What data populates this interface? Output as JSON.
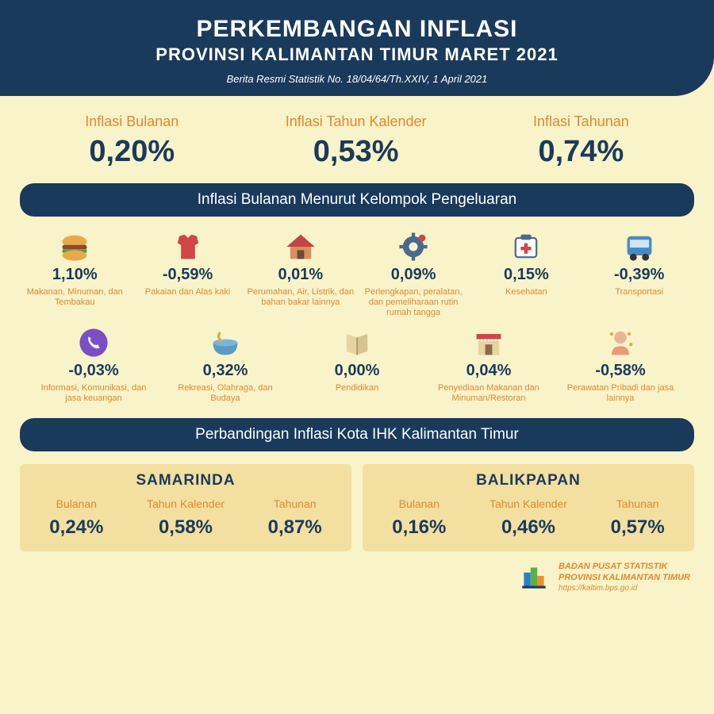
{
  "colors": {
    "bg": "#f8f3c9",
    "navy": "#1a3a5c",
    "orange": "#e08a2e",
    "cardBg": "#f3dfa0"
  },
  "header": {
    "title": "PERKEMBANGAN INFLASI",
    "subtitle": "PROVINSI KALIMANTAN TIMUR MARET 2021",
    "note": "Berita Resmi Statistik No. 18/04/64/Th.XXIV, 1 April 2021"
  },
  "topStats": [
    {
      "label": "Inflasi Bulanan",
      "value": "0,20%"
    },
    {
      "label": "Inflasi Tahun Kalender",
      "value": "0,53%"
    },
    {
      "label": "Inflasi Tahunan",
      "value": "0,74%"
    }
  ],
  "sectionCategories": "Inflasi Bulanan Menurut Kelompok Pengeluaran",
  "categories": [
    {
      "icon": "burger",
      "pct": "1,10%",
      "name": "Makanan, Minuman, dan Tembakau"
    },
    {
      "icon": "shirt",
      "pct": "-0,59%",
      "name": "Pakaian dan Alas kaki"
    },
    {
      "icon": "house",
      "pct": "0,01%",
      "name": "Perumahan, Air, Listrik, dan bahan bakar lainnya"
    },
    {
      "icon": "gear",
      "pct": "0,09%",
      "name": "Perlengkapan, peralatan, dan pemeliharaan rutin rumah tangga"
    },
    {
      "icon": "health",
      "pct": "0,15%",
      "name": "Kesehatan"
    },
    {
      "icon": "bus",
      "pct": "-0,39%",
      "name": "Transportasi"
    },
    {
      "icon": "phone",
      "pct": "-0,03%",
      "name": "Informasi, Komunikasi, dan jasa keuangan"
    },
    {
      "icon": "bowl",
      "pct": "0,32%",
      "name": "Rekreasi, Olahraga, dan Budaya"
    },
    {
      "icon": "book",
      "pct": "0,00%",
      "name": "Pendidikan"
    },
    {
      "icon": "shop",
      "pct": "0,04%",
      "name": "Penyediaan Makanan dan Minuman/Restoran"
    },
    {
      "icon": "person",
      "pct": "-0,58%",
      "name": "Perawatan Pribadi dan jasa lainnya"
    }
  ],
  "sectionCities": "Perbandingan Inflasi Kota IHK Kalimantan Timur",
  "cities": [
    {
      "name": "SAMARINDA",
      "items": [
        {
          "label": "Bulanan",
          "value": "0,24%"
        },
        {
          "label": "Tahun Kalender",
          "value": "0,58%"
        },
        {
          "label": "Tahunan",
          "value": "0,87%"
        }
      ]
    },
    {
      "name": "BALIKPAPAN",
      "items": [
        {
          "label": "Bulanan",
          "value": "0,16%"
        },
        {
          "label": "Tahun Kalender",
          "value": "0,46%"
        },
        {
          "label": "Tahunan",
          "value": "0,57%"
        }
      ]
    }
  ],
  "footer": {
    "line1": "BADAN PUSAT STATISTIK",
    "line2": "PROVINSI KALIMANTAN TIMUR",
    "url": "https://kaltim.bps.go.id"
  }
}
